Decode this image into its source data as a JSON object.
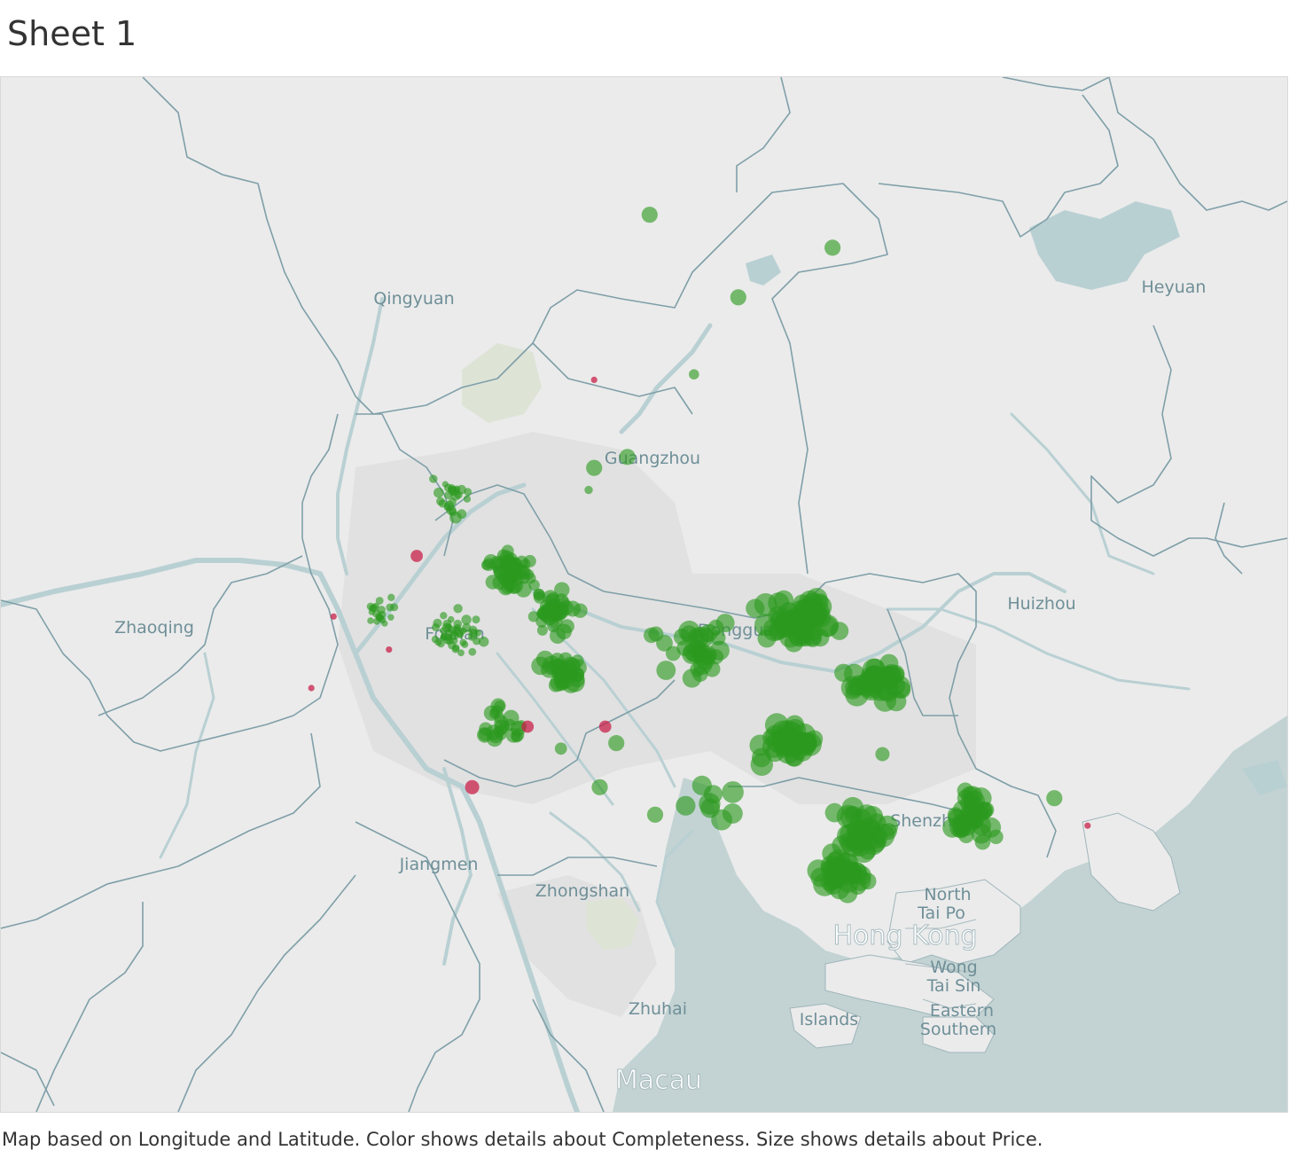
{
  "sheet": {
    "title": "Sheet 1"
  },
  "caption": "Map based on Longitude and Latitude.  Color shows details about Completeness.  Size shows details about Price.",
  "colors": {
    "background": "#ebebeb",
    "sea": "#c3d3d3",
    "river": "#b9d0d3",
    "border": "#7f9fa8",
    "urban": "#e2e2e2",
    "label": "#6f8f98",
    "complete": "#2c9a1e",
    "incomplete": "#c8204a"
  },
  "place_labels": {
    "qingyuan": "Qingyuan",
    "heyuan": "Heyuan",
    "guangzhou": "Guangzhou",
    "zhaoqing": "Zhaoqing",
    "foshan": "Foshan",
    "dongguan": "Dongguan",
    "huizhou": "Huizhou",
    "jiangmen": "Jiangmen",
    "zhongshan": "Zhongshan",
    "shenzhen": "Shenzhen",
    "north": "North",
    "tai_po": "Tai Po",
    "hong_kong": "Hong Kong",
    "wong": "Wong",
    "tai_sin": "Tai Sin",
    "eastern": "Eastern",
    "southern": "Southern",
    "islands": "Islands",
    "zhuhai": "Zhuhai",
    "macau": "Macau"
  },
  "chart_data": {
    "type": "scatter",
    "encoding": {
      "x": "Longitude",
      "y": "Latitude",
      "color": "Completeness",
      "size": "Price"
    },
    "extent": {
      "lon": [
        112.3,
        114.62
      ],
      "lat": [
        22.12,
        24.0
      ]
    },
    "points": [
      {
        "lon": 113.47,
        "lat": 23.75,
        "c": 1,
        "p": 0.6
      },
      {
        "lon": 113.8,
        "lat": 23.69,
        "c": 1,
        "p": 0.6
      },
      {
        "lon": 113.63,
        "lat": 23.6,
        "c": 1,
        "p": 0.6
      },
      {
        "lon": 113.55,
        "lat": 23.46,
        "c": 1,
        "p": 0.3
      },
      {
        "lon": 113.43,
        "lat": 23.31,
        "c": 1,
        "p": 0.6
      },
      {
        "lon": 113.37,
        "lat": 23.29,
        "c": 1,
        "p": 0.6
      },
      {
        "lon": 113.36,
        "lat": 23.25,
        "c": 1,
        "p": 0.2
      },
      {
        "lon": 113.12,
        "lat": 23.2,
        "c": 1,
        "p": 0.4
      },
      {
        "lon": 113.05,
        "lat": 23.13,
        "c": 0,
        "p": 0.4
      },
      {
        "lon": 113.37,
        "lat": 23.45,
        "c": 0,
        "p": 0.1
      },
      {
        "lon": 112.9,
        "lat": 23.02,
        "c": 0,
        "p": 0.1
      },
      {
        "lon": 112.86,
        "lat": 22.89,
        "c": 0,
        "p": 0.1
      },
      {
        "lon": 113.25,
        "lat": 22.82,
        "c": 0,
        "p": 0.4
      },
      {
        "lon": 113.39,
        "lat": 22.82,
        "c": 0,
        "p": 0.4
      },
      {
        "lon": 113.15,
        "lat": 22.71,
        "c": 0,
        "p": 0.5
      },
      {
        "lon": 114.26,
        "lat": 22.64,
        "c": 0,
        "p": 0.1
      },
      {
        "lon": 113.0,
        "lat": 22.96,
        "c": 0,
        "p": 0.1
      },
      {
        "lon": 113.89,
        "lat": 22.77,
        "c": 1,
        "p": 0.5
      },
      {
        "lon": 114.2,
        "lat": 22.69,
        "c": 1,
        "p": 0.6
      },
      {
        "lon": 113.41,
        "lat": 22.79,
        "c": 1,
        "p": 0.6
      },
      {
        "lon": 113.48,
        "lat": 22.66,
        "c": 1,
        "p": 0.6
      },
      {
        "lon": 113.38,
        "lat": 22.71,
        "c": 1,
        "p": 0.6
      },
      {
        "lon": 113.31,
        "lat": 22.78,
        "c": 1,
        "p": 0.4
      },
      {
        "lon": 113.08,
        "lat": 23.27,
        "c": 1,
        "p": 0.2
      },
      {
        "lon": 113.12,
        "lat": 23.24,
        "c": 1,
        "p": 0.3
      }
    ],
    "clusters": [
      {
        "lon": 113.12,
        "lat": 23.24,
        "n": 20,
        "spread": [
          0.05,
          0.06
        ],
        "c": 1,
        "p": [
          0.1,
          0.3
        ]
      },
      {
        "lon": 113.22,
        "lat": 23.1,
        "n": 60,
        "spread": [
          0.06,
          0.05
        ],
        "c": 1,
        "p": [
          0.3,
          0.6
        ]
      },
      {
        "lon": 113.3,
        "lat": 23.03,
        "n": 40,
        "spread": [
          0.06,
          0.05
        ],
        "c": 1,
        "p": [
          0.3,
          0.6
        ]
      },
      {
        "lon": 113.13,
        "lat": 22.99,
        "n": 45,
        "spread": [
          0.06,
          0.05
        ],
        "c": 1,
        "p": [
          0.1,
          0.3
        ]
      },
      {
        "lon": 112.98,
        "lat": 23.03,
        "n": 20,
        "spread": [
          0.06,
          0.04
        ],
        "c": 1,
        "p": [
          0.1,
          0.2
        ]
      },
      {
        "lon": 113.31,
        "lat": 22.92,
        "n": 30,
        "spread": [
          0.05,
          0.04
        ],
        "c": 1,
        "p": [
          0.4,
          0.8
        ]
      },
      {
        "lon": 113.2,
        "lat": 22.82,
        "n": 25,
        "spread": [
          0.05,
          0.05
        ],
        "c": 1,
        "p": [
          0.3,
          0.6
        ]
      },
      {
        "lon": 113.55,
        "lat": 22.96,
        "n": 35,
        "spread": [
          0.1,
          0.07
        ],
        "c": 1,
        "p": [
          0.5,
          0.9
        ]
      },
      {
        "lon": 113.74,
        "lat": 23.01,
        "n": 70,
        "spread": [
          0.09,
          0.05
        ],
        "c": 1,
        "p": [
          0.6,
          1.0
        ]
      },
      {
        "lon": 113.88,
        "lat": 22.9,
        "n": 40,
        "spread": [
          0.08,
          0.07
        ],
        "c": 1,
        "p": [
          0.6,
          1.0
        ]
      },
      {
        "lon": 113.72,
        "lat": 22.79,
        "n": 40,
        "spread": [
          0.07,
          0.05
        ],
        "c": 1,
        "p": [
          0.6,
          1.0
        ]
      },
      {
        "lon": 113.86,
        "lat": 22.63,
        "n": 40,
        "spread": [
          0.08,
          0.06
        ],
        "c": 1,
        "p": [
          0.6,
          1.0
        ]
      },
      {
        "lon": 113.82,
        "lat": 22.55,
        "n": 35,
        "spread": [
          0.06,
          0.04
        ],
        "c": 1,
        "p": [
          0.6,
          1.0
        ]
      },
      {
        "lon": 114.05,
        "lat": 22.66,
        "n": 35,
        "spread": [
          0.06,
          0.06
        ],
        "c": 1,
        "p": [
          0.5,
          0.9
        ]
      },
      {
        "lon": 113.59,
        "lat": 22.68,
        "n": 8,
        "spread": [
          0.06,
          0.05
        ],
        "c": 1,
        "p": [
          0.6,
          0.9
        ]
      }
    ]
  }
}
